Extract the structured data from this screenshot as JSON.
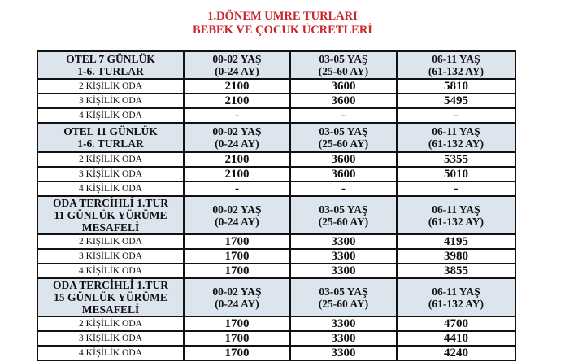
{
  "title": {
    "line1": "1.DÖNEM UMRE TURLARI",
    "line2": "BEBEK VE ÇOCUK ÜCRETLERİ"
  },
  "colors": {
    "title": "#c8262c",
    "header_bg": "#dce4ee"
  },
  "sections": [
    {
      "heading": [
        "OTEL 7 GÜNLÜK",
        "1-6. TURLAR"
      ],
      "columns": [
        [
          "00-02 YAŞ",
          "(0-24 AY)"
        ],
        [
          "03-05 YAŞ",
          "(25-60 AY)"
        ],
        [
          "06-11 YAŞ",
          "(61-132 AY)"
        ]
      ],
      "rows": [
        {
          "label": "2 KİŞİLİK ODA",
          "values": [
            "2100",
            "3600",
            "5810"
          ]
        },
        {
          "label": "3 KİŞİLİK ODA",
          "values": [
            "2100",
            "3600",
            "5495"
          ]
        },
        {
          "label": "4 KİŞİLİK ODA",
          "values": [
            "-",
            "-",
            "-"
          ]
        }
      ]
    },
    {
      "heading": [
        "OTEL 11 GÜNLÜK",
        "1-6. TURLAR"
      ],
      "columns": [
        [
          "00-02 YAŞ",
          "(0-24 AY)"
        ],
        [
          "03-05 YAŞ",
          "(25-60 AY)"
        ],
        [
          "06-11 YAŞ",
          "(61-132 AY)"
        ]
      ],
      "rows": [
        {
          "label": "2 KİŞİLİK ODA",
          "values": [
            "2100",
            "3600",
            "5355"
          ]
        },
        {
          "label": "3 KİŞİLİK ODA",
          "values": [
            "2100",
            "3600",
            "5010"
          ]
        },
        {
          "label": "4 KİŞİLİK ODA",
          "values": [
            "-",
            "-",
            "-"
          ]
        }
      ]
    },
    {
      "heading": [
        "ODA TERCİHLİ 1.TUR",
        "11 GÜNLÜK YÜRÜME",
        "MESAFELİ"
      ],
      "columns": [
        [
          "00-02 YAŞ",
          "(0-24 AY)"
        ],
        [
          "03-05 YAŞ",
          "(25-60 AY)"
        ],
        [
          "06-11 YAŞ",
          "(61-132 AY)"
        ]
      ],
      "rows": [
        {
          "label": "2 KIŞILIK ODA",
          "values": [
            "1700",
            "3300",
            "4195"
          ]
        },
        {
          "label": "3 KİŞİLİK ODA",
          "values": [
            "1700",
            "3300",
            "3980"
          ]
        },
        {
          "label": "4 KİŞİLİK ODA",
          "values": [
            "1700",
            "3300",
            "3855"
          ]
        }
      ]
    },
    {
      "heading": [
        "ODA TERCİHLİ 1.TUR",
        "15 GÜNLÜK YÜRÜME",
        "MESAFELİ"
      ],
      "columns": [
        [
          "00-02 YAŞ",
          "(0-24 AY)"
        ],
        [
          "03-05 YAŞ",
          "(25-60 AY)"
        ],
        [
          "06-11 YAŞ",
          "(61-132 AY)"
        ]
      ],
      "rows": [
        {
          "label": "2 KİŞİLİK ODA",
          "values": [
            "1700",
            "3300",
            "4700"
          ]
        },
        {
          "label": "3 KİŞİLİK ODA",
          "values": [
            "1700",
            "3300",
            "4410"
          ]
        },
        {
          "label": "4 KİŞİLİK ODA",
          "values": [
            "1700",
            "3300",
            "4240"
          ]
        }
      ]
    }
  ]
}
